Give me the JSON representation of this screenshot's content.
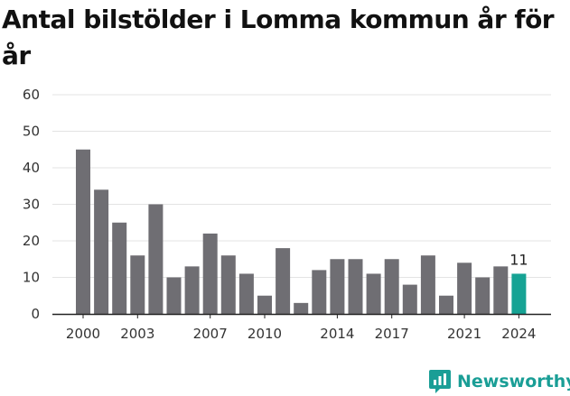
{
  "chart_data": {
    "type": "bar",
    "title": "Antal bilstölder i Lomma kommun år för år",
    "xlabel": "",
    "ylabel": "",
    "categories": [
      "2000",
      "2001",
      "2002",
      "2003",
      "2004",
      "2005",
      "2006",
      "2007",
      "2008",
      "2009",
      "2010",
      "2011",
      "2012",
      "2013",
      "2014",
      "2015",
      "2016",
      "2017",
      "2018",
      "2019",
      "2020",
      "2021",
      "2022",
      "2023",
      "2024"
    ],
    "values": [
      45,
      34,
      25,
      16,
      30,
      10,
      13,
      22,
      16,
      11,
      5,
      18,
      3,
      12,
      15,
      15,
      11,
      15,
      8,
      16,
      5,
      14,
      10,
      13,
      11
    ],
    "x_tick_labels": [
      "2000",
      "2003",
      "2007",
      "2010",
      "2014",
      "2017",
      "2021",
      "2024"
    ],
    "y_ticks": [
      0,
      10,
      20,
      30,
      40,
      50,
      60
    ],
    "ylim": [
      0,
      60
    ],
    "grid": true,
    "highlight": {
      "category": "2024",
      "label": "11"
    },
    "colors": {
      "bar": "#6f6e73",
      "highlight": "#16a394",
      "grid": "#e3e3e3",
      "axis": "#222222"
    }
  },
  "brand": {
    "name": "Newsworthy",
    "color": "#1a9e96",
    "icon": "newsworthy-logo-icon"
  }
}
